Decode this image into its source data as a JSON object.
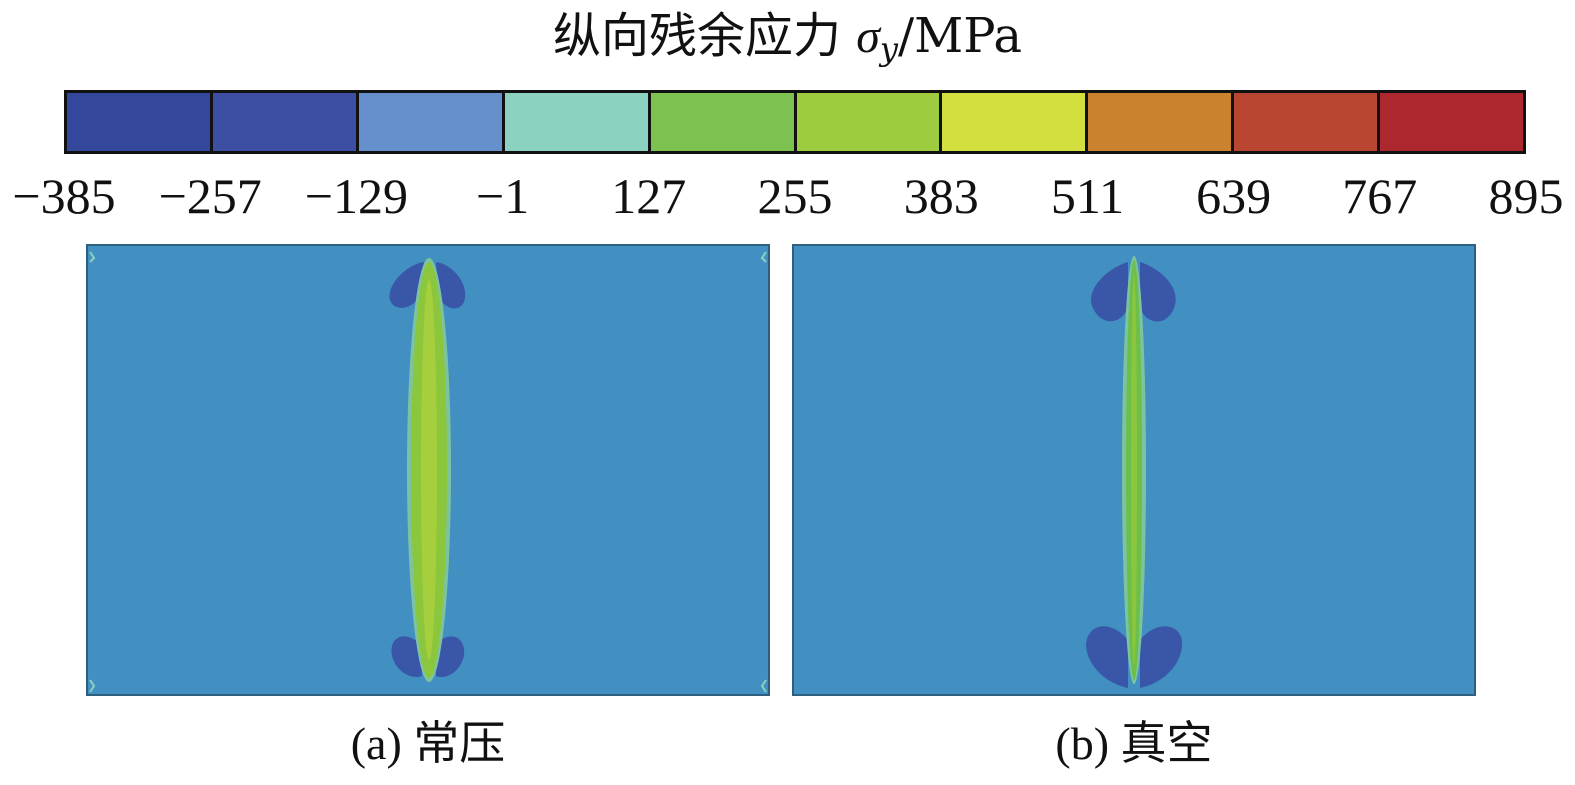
{
  "legend": {
    "title_text": "纵向残余应力 ",
    "symbol": "σ",
    "subscript": "y",
    "unit": "/MPa",
    "ticks": [
      "−385",
      "−257",
      "−129",
      "−1",
      "127",
      "255",
      "383",
      "511",
      "639",
      "767",
      "895"
    ],
    "colors": [
      "#33479b",
      "#3c4fa2",
      "#6590cb",
      "#8bd2c1",
      "#7dc250",
      "#9dcc3e",
      "#d3df3f",
      "#c9832e",
      "#b84630",
      "#ac282e"
    ]
  },
  "panels": [
    {
      "caption": "(a) 常压",
      "background_color": "#4290c1",
      "core_color": "#8bc63c",
      "compressive_color": "#3a56a8"
    },
    {
      "caption": "(b) 真空",
      "background_color": "#4290c1",
      "core_color": "#6cbf4a",
      "compressive_color": "#3a56a8"
    }
  ]
}
